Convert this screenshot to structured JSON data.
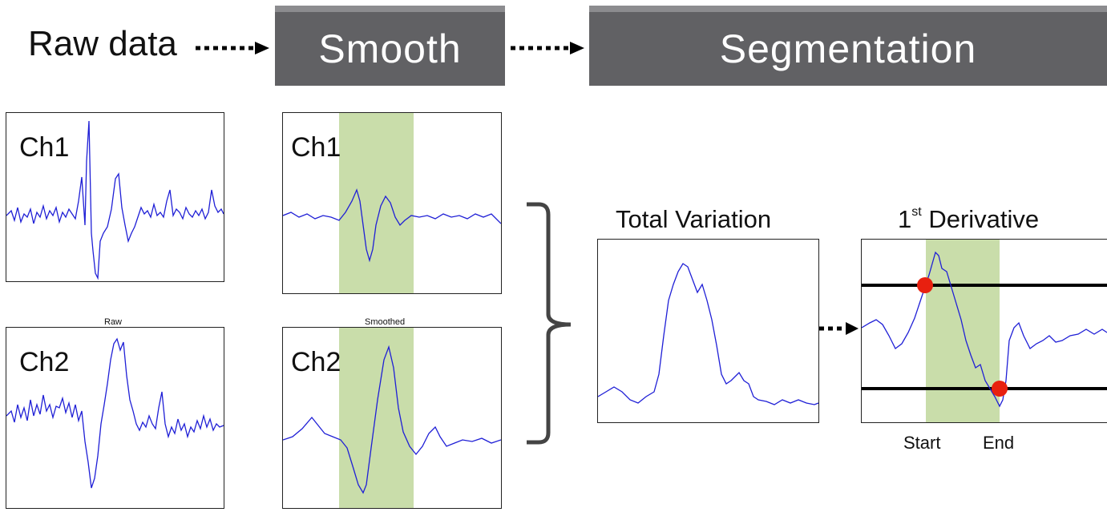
{
  "header": {
    "raw_label": "Raw data",
    "smooth_label": "Smooth",
    "segmentation_label": "Segmentation"
  },
  "raw_panel": {
    "title": "Raw",
    "ch1_label": "Ch1",
    "ch2_label": "Ch2"
  },
  "smoothed_panel": {
    "title": "Smoothed",
    "ch1_label": "Ch1",
    "ch2_label": "Ch2"
  },
  "total_variation": {
    "title": "Total Variation"
  },
  "derivative": {
    "title_main": "1",
    "title_sup": "st",
    "title_rest": " Derivative",
    "start_label": "Start",
    "end_label": "End"
  },
  "colors": {
    "header_bg": "#616164",
    "signal": "#1f1fd6",
    "highlight": "#c9ddaa",
    "marker": "#e8200f",
    "threshold": "#000000"
  },
  "icons": {
    "arrow": "dotted-arrow-icon",
    "bracket": "right-curly-bracket-icon"
  }
}
